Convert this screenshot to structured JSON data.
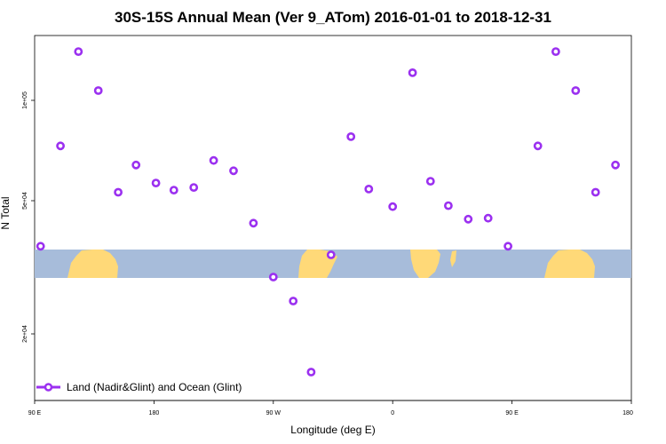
{
  "chart_data": {
    "type": "scatter",
    "title": "30S-15S Annual Mean (Ver 9_ATom)   2016-01-01 to 2018-12-31",
    "xlabel": "Longitude (deg E)",
    "ylabel": "N Total",
    "x_ticks": [
      "90 E",
      "180",
      "90 W",
      "0",
      "90 E",
      "180"
    ],
    "y_ticks": [
      "1e+05",
      "5e+04",
      "2e+04"
    ],
    "y_scale": "log",
    "grid": false,
    "legend_position": "bottom-left",
    "colors": {
      "marker": "#9B30F0",
      "ocean": "#A7BCDA",
      "land": "#FFD978"
    },
    "series": [
      {
        "name": "Land (Nadir&Glint) and Ocean (Glint)",
        "note_x": "longitude in degrees east, continuous from 90E eastward",
        "points": [
          {
            "x": 93,
            "y": 36500
          },
          {
            "x": 103,
            "y": 73000
          },
          {
            "x": 112,
            "y": 140000
          },
          {
            "x": 122,
            "y": 107000
          },
          {
            "x": 132,
            "y": 53000
          },
          {
            "x": 141,
            "y": 64000
          },
          {
            "x": 151,
            "y": 56500
          },
          {
            "x": 160,
            "y": 53800
          },
          {
            "x": 170,
            "y": 54800
          },
          {
            "x": 180,
            "y": 66000
          },
          {
            "x": 190,
            "y": 61500
          },
          {
            "x": 200,
            "y": 42800
          },
          {
            "x": 210,
            "y": 29500
          },
          {
            "x": 220,
            "y": 25000
          },
          {
            "x": 229,
            "y": 15300
          },
          {
            "x": 239,
            "y": 34400
          },
          {
            "x": 249,
            "y": 77800
          },
          {
            "x": 258,
            "y": 54200
          },
          {
            "x": 270,
            "y": 48000
          },
          {
            "x": 280,
            "y": 121000
          },
          {
            "x": 289,
            "y": 57200
          },
          {
            "x": 298,
            "y": 48300
          },
          {
            "x": 308,
            "y": 44000
          },
          {
            "x": 318,
            "y": 44300
          },
          {
            "x": 328,
            "y": 36500
          },
          {
            "x": 343,
            "y": 73000
          },
          {
            "x": 352,
            "y": 140000
          },
          {
            "x": 362,
            "y": 107000
          },
          {
            "x": 372,
            "y": 53000
          },
          {
            "x": 382,
            "y": 64000
          }
        ]
      }
    ],
    "xlim": [
      90,
      390
    ],
    "ylim": [
      14000,
      180000
    ]
  }
}
